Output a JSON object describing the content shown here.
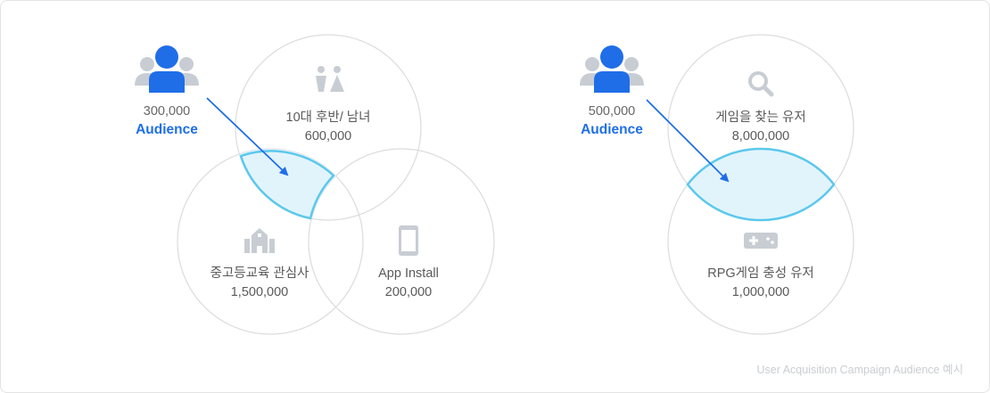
{
  "left_diagram": {
    "audience": {
      "count": "300,000",
      "label": "Audience"
    },
    "circles": [
      {
        "title": "10대 후반/ 남녀",
        "value": "600,000",
        "icon": "male-female-icon"
      },
      {
        "title": "중고등교육 관심사",
        "value": "1,500,000",
        "icon": "school-icon"
      },
      {
        "title": "App Install",
        "value": "200,000",
        "icon": "smartphone-icon"
      }
    ]
  },
  "right_diagram": {
    "audience": {
      "count": "500,000",
      "label": "Audience"
    },
    "circles": [
      {
        "title": "게임을 찾는 유저",
        "value": "8,000,000",
        "icon": "search-icon"
      },
      {
        "title": "RPG게임 충성 유저",
        "value": "1,000,000",
        "icon": "gamepad-icon"
      }
    ]
  },
  "caption": "User Acquisition Campaign Audience 예시",
  "colors": {
    "accent": "#1f6ee8",
    "highlight_stroke": "#5bc8ec",
    "highlight_fill": "#e2f4fb",
    "circle_stroke": "#dcdcdc",
    "icon_gray": "#c8cdd3"
  }
}
